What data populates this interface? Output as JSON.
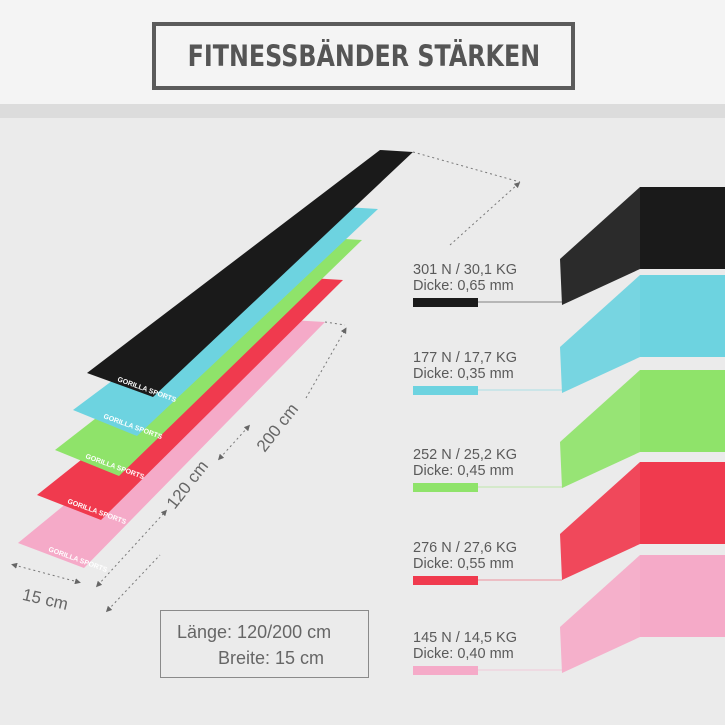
{
  "title": "FITNESSBÄNDER STÄRKEN",
  "brand": "GORILLA SPORTS",
  "dimensions": {
    "width_label": "15 cm",
    "length_short": "120 cm",
    "length_long": "200 cm",
    "box_length": "Länge: 120/200 cm",
    "box_width": "Breite: 15 cm"
  },
  "bands": [
    {
      "color": "#1a1a1a",
      "strength": "301 N / 30,1 KG",
      "thickness": "Dicke: 0,65 mm"
    },
    {
      "color": "#6dd3e0",
      "strength": "177 N / 17,7  KG",
      "thickness": "Dicke: 0,35 mm"
    },
    {
      "color": "#8fe36a",
      "strength": "252 N / 25,2  KG",
      "thickness": "Dicke: 0,45 mm"
    },
    {
      "color": "#f03a4e",
      "strength": "276 N / 27,6 KG",
      "thickness": "Dicke: 0,55 mm"
    },
    {
      "color": "#f5aac8",
      "strength": "145 N / 14,5  KG",
      "thickness": "Dicke: 0,40 mm"
    }
  ]
}
